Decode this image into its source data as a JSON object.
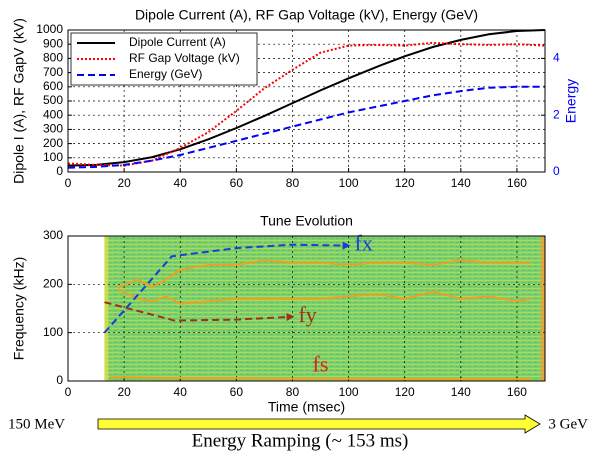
{
  "chart_data": [
    {
      "type": "line",
      "title": "Dipole Current (A), RF Gap Voltage (kV), Energy (GeV)",
      "ylabel": "Dipole I (A), RF GapV (kV)",
      "y2label": "Energy",
      "y2color": "#0000ff",
      "x": [
        0,
        10,
        20,
        30,
        40,
        50,
        60,
        70,
        80,
        90,
        100,
        110,
        120,
        130,
        140,
        150,
        160,
        170
      ],
      "xlim": [
        0,
        170
      ],
      "xticks": [
        0,
        20,
        40,
        60,
        80,
        100,
        120,
        140,
        160
      ],
      "ylim": [
        0,
        1000
      ],
      "yticks": [
        0,
        100,
        200,
        300,
        400,
        500,
        600,
        700,
        800,
        900,
        1000
      ],
      "y2lim": [
        0,
        5
      ],
      "y2ticks": [
        0,
        2,
        4
      ],
      "grid": true,
      "legend": "upper left",
      "series": [
        {
          "name": "Dipole Current (A)",
          "color": "#000000",
          "linestyle": "solid",
          "values": [
            45,
            50,
            70,
            105,
            160,
            230,
            310,
            395,
            485,
            575,
            660,
            740,
            815,
            880,
            930,
            970,
            993,
            1000
          ]
        },
        {
          "name": "RF Gap Voltage (kV)",
          "color": "#ff0000",
          "linestyle": "dotted",
          "values": [
            60,
            50,
            45,
            80,
            170,
            280,
            430,
            590,
            720,
            840,
            890,
            895,
            890,
            910,
            900,
            895,
            900,
            890
          ]
        },
        {
          "name": "Energy (GeV)",
          "color": "#0000ff",
          "linestyle": "dashed",
          "axis": "y2",
          "values": [
            0.15,
            0.18,
            0.25,
            0.4,
            0.6,
            0.85,
            1.1,
            1.35,
            1.6,
            1.85,
            2.1,
            2.3,
            2.5,
            2.7,
            2.85,
            2.97,
            3.0,
            3.0
          ]
        }
      ]
    },
    {
      "type": "line",
      "title": "Tune Evolution",
      "xlabel": "Time (msec)",
      "ylabel": "Frequency (kHz)",
      "xlim": [
        0,
        170
      ],
      "xticks": [
        0,
        20,
        40,
        60,
        80,
        100,
        120,
        140,
        160
      ],
      "ylim": [
        0,
        300
      ],
      "yticks": [
        0,
        100,
        200,
        300
      ],
      "grid": true,
      "spectrogram_x": [
        13,
        170
      ],
      "series": [
        {
          "color": "#f0a020",
          "linestyle": "solid",
          "x": [
            18,
            25,
            30,
            35,
            40,
            50,
            60,
            70,
            80,
            90,
            100,
            110,
            120,
            130,
            140,
            150,
            160,
            165
          ],
          "values": [
            195,
            210,
            195,
            210,
            230,
            240,
            240,
            250,
            245,
            245,
            240,
            245,
            245,
            240,
            250,
            245,
            245,
            245
          ]
        },
        {
          "color": "#f0a020",
          "linestyle": "solid",
          "x": [
            18,
            25,
            30,
            35,
            40,
            50,
            60,
            70,
            80,
            90,
            100,
            110,
            120,
            130,
            140,
            150,
            160,
            165
          ],
          "values": [
            190,
            170,
            165,
            175,
            160,
            165,
            170,
            170,
            170,
            170,
            175,
            180,
            170,
            185,
            170,
            175,
            165,
            170
          ]
        },
        {
          "name": "fx",
          "color": "#1a3fd6",
          "label_color": "#1a3fd6",
          "linestyle": "dashed",
          "arrow": true,
          "x": [
            13,
            37,
            60,
            80,
            100
          ],
          "values": [
            100,
            258,
            275,
            282,
            280
          ]
        },
        {
          "name": "fy",
          "color": "#a0301c",
          "label_color": "#a0301c",
          "linestyle": "dashed",
          "arrow": true,
          "x": [
            13,
            38,
            60,
            80
          ],
          "values": [
            163,
            125,
            127,
            133
          ]
        },
        {
          "name": "fs",
          "color": "#f0a020",
          "label_color": "#e02020",
          "linestyle": "solid",
          "x": [
            15,
            30,
            45,
            60,
            75,
            90,
            105,
            120,
            135,
            150,
            165
          ],
          "values": [
            8,
            7,
            6,
            6,
            5,
            5,
            5,
            4,
            4,
            4,
            4
          ]
        }
      ]
    }
  ],
  "footer": {
    "start_label": "150 MeV",
    "end_label": "3 GeV",
    "caption": "Energy Ramping (~ 153 ms)"
  }
}
